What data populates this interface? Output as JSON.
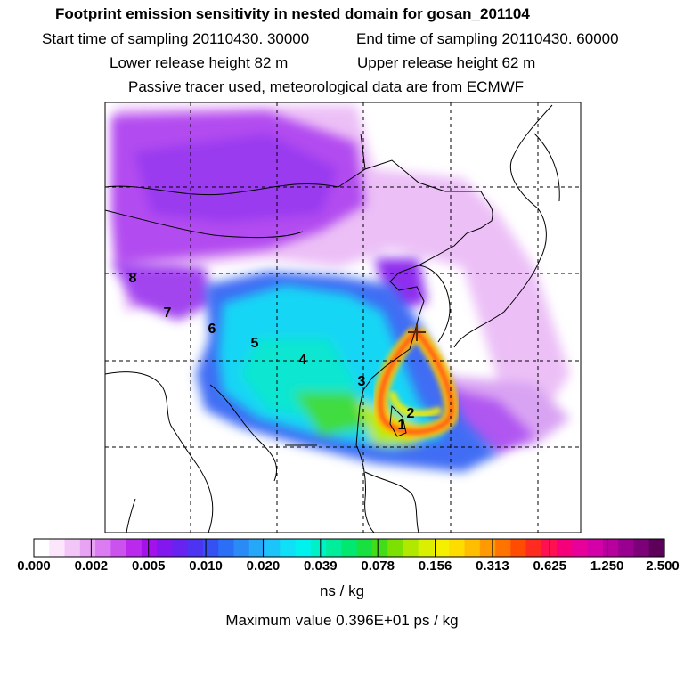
{
  "header": {
    "title": "Footprint emission sensitivity in nested domain for gosan_201104",
    "start_sampling": "Start time of sampling 20110430. 30000",
    "end_sampling": "End time of sampling 20110430. 60000",
    "lower_release": "Lower release height   82 m",
    "upper_release": "Upper release height   62 m",
    "tracer_info": "Passive tracer used, meteorological data are from ECMWF"
  },
  "map": {
    "release_marker": "release-site-cross",
    "day_markers": [
      "1",
      "2",
      "3",
      "4",
      "5",
      "6",
      "7",
      "8"
    ]
  },
  "colorbar": {
    "tick_labels": [
      "0.000",
      "0.002",
      "0.005",
      "0.010",
      "0.020",
      "0.039",
      "0.078",
      "0.156",
      "0.313",
      "0.625",
      "1.250",
      "2.500"
    ],
    "colors": [
      "#ffffff",
      "#fbe6fb",
      "#f3c6f8",
      "#e9a3f5",
      "#dc7cf2",
      "#cc52ee",
      "#bb2aec",
      "#a312ec",
      "#8218ee",
      "#6724f0",
      "#4d34f2",
      "#3551f4",
      "#2a6ff6",
      "#2a8bf7",
      "#26a8f8",
      "#1dc4f9",
      "#0fe0f8",
      "#00f2ee",
      "#00f0c8",
      "#00ee9c",
      "#00e870",
      "#18e040",
      "#42dc18",
      "#7ce000",
      "#b0e800",
      "#daf000",
      "#f4f000",
      "#ffdc00",
      "#ffbe00",
      "#ff9a00",
      "#ff7400",
      "#ff4c00",
      "#ff2a20",
      "#ff1050",
      "#f5007a",
      "#e8009a",
      "#d400a8",
      "#b8009e",
      "#9a0090",
      "#7c0078",
      "#5c005a"
    ],
    "units": "ns / kg",
    "max_value": "Maximum value  0.396E+01 ps / kg"
  }
}
